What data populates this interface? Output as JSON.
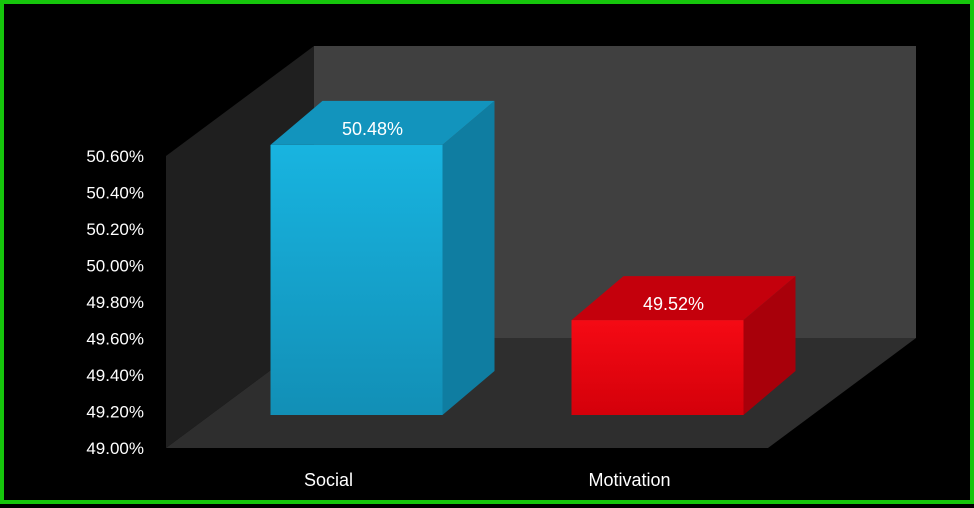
{
  "chart_data": {
    "type": "bar",
    "style": "3d-column",
    "title": "",
    "xlabel": "",
    "ylabel": "",
    "categories": [
      "Social",
      "Motivation"
    ],
    "values": [
      50.48,
      49.52
    ],
    "data_labels": [
      "50.48%",
      "49.52%"
    ],
    "ylim": [
      49.0,
      50.6
    ],
    "y_ticks": [
      "49.00%",
      "49.20%",
      "49.40%",
      "49.60%",
      "49.80%",
      "50.00%",
      "50.20%",
      "50.40%",
      "50.60%"
    ],
    "grid": false,
    "legend": "none",
    "colors": {
      "series": [
        "#15a9d4",
        "#e8000d"
      ],
      "background": "#000000",
      "frame_border": "#16c60c",
      "wall": "#404040",
      "floor": "#2e2e2e",
      "text": "#ffffff"
    }
  }
}
